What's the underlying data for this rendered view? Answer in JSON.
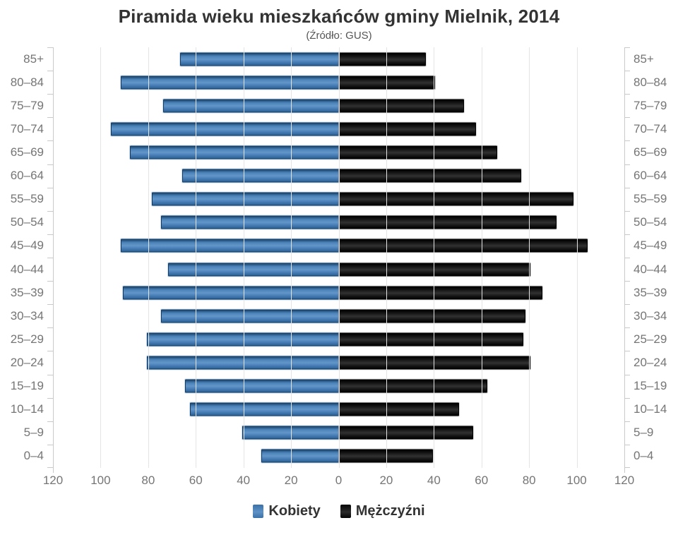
{
  "title": "Piramida wieku mieszkańców gminy Mielnik, 2014",
  "subtitle": "(Źródło: GUS)",
  "colors": {
    "women_bar": "#4f86bf",
    "men_bar": "#1a1a1a",
    "grid": "#e4e4e4",
    "axis": "#c9c9c9",
    "axis_label_text": "#757575",
    "title_text": "#333333"
  },
  "chart_data": {
    "type": "bar",
    "variant": "population-pyramid",
    "title": "Piramida wieku mieszkańców gminy Mielnik, 2014",
    "subtitle": "(Źródło: GUS)",
    "categories": [
      "85+",
      "80–84",
      "75–79",
      "70–74",
      "65–69",
      "60–64",
      "55–59",
      "50–54",
      "45–49",
      "40–44",
      "35–39",
      "30–34",
      "25–29",
      "20–24",
      "15–19",
      "10–14",
      "5–9",
      "0–4"
    ],
    "series": [
      {
        "name": "Kobiety",
        "side": "left",
        "color": "#4f86bf",
        "values": [
          66,
          91,
          73,
          95,
          87,
          65,
          78,
          74,
          91,
          71,
          90,
          74,
          80,
          80,
          64,
          62,
          40,
          32
        ]
      },
      {
        "name": "Mężczyźni",
        "side": "right",
        "color": "#1a1a1a",
        "values": [
          36,
          40,
          52,
          57,
          66,
          76,
          98,
          91,
          104,
          80,
          85,
          78,
          77,
          80,
          62,
          50,
          56,
          39
        ]
      }
    ],
    "xlim_each_side": [
      0,
      120
    ],
    "x_tick_step": 20,
    "x_tick_labels": [
      "120",
      "100",
      "80",
      "60",
      "40",
      "20",
      "0",
      "20",
      "40",
      "60",
      "80",
      "100",
      "120"
    ],
    "grid": true,
    "legend_position": "bottom"
  }
}
